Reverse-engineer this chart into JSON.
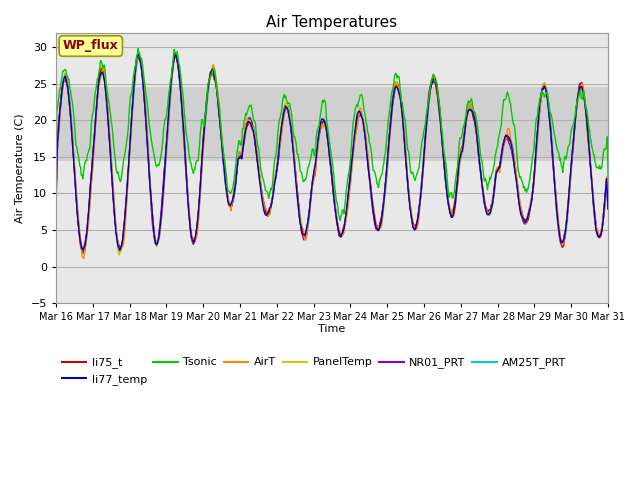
{
  "title": "Air Temperatures",
  "xlabel": "Time",
  "ylabel": "Air Temperature (C)",
  "ylim": [
    -5,
    32
  ],
  "yticks": [
    -5,
    0,
    5,
    10,
    15,
    20,
    25,
    30
  ],
  "n_days": 15,
  "points_per_day": 48,
  "series_colors": {
    "li75_t": "#cc0000",
    "li77_temp": "#0000cc",
    "Tsonic": "#00cc00",
    "AirT": "#ff8800",
    "PanelTemp": "#cccc00",
    "NR01_PRT": "#8800cc",
    "AM25T_PRT": "#00cccc"
  },
  "shaded_band": [
    14.5,
    24.5
  ],
  "annotation_text": "WP_flux",
  "background_color": "#e8e8e8",
  "band_color": "#d0d0d0",
  "grid_color": "#c8c8c8"
}
